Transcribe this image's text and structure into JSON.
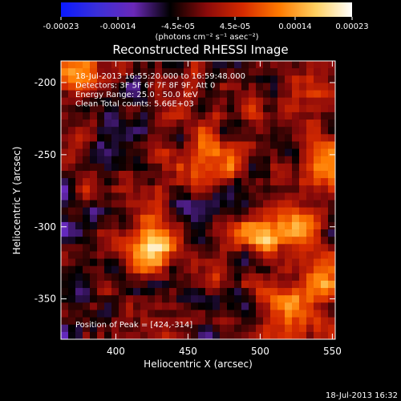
{
  "chart_data": {
    "type": "heatmap",
    "title": "Reconstructed RHESSI Image",
    "xlabel": "Heliocentric X (arcsec)",
    "ylabel": "Heliocentric Y (arcsec)",
    "xlim": [
      362,
      552
    ],
    "ylim": [
      -378,
      -185
    ],
    "x_ticks": [
      "400",
      "450",
      "500",
      "550"
    ],
    "x_tick_values": [
      400,
      450,
      500,
      550
    ],
    "y_ticks": [
      "-200",
      "-250",
      "-300",
      "-350"
    ],
    "y_tick_values": [
      -200,
      -250,
      -300,
      -350
    ],
    "colorbar": {
      "ticks": [
        "-0.00023",
        "-0.00014",
        "-4.5e-05",
        "4.5e-05",
        "0.00014",
        "0.00023"
      ],
      "tick_values": [
        -0.00023,
        -0.00014,
        -4.5e-05,
        4.5e-05,
        0.00014,
        0.00023
      ],
      "range": [
        -0.00023,
        0.00023
      ],
      "unit_label": "(photons cm⁻² s⁻¹ asec⁻²)",
      "colors": [
        "#0a1aff",
        "#3b2fd9",
        "#6a28b8",
        "#000000",
        "#8a0a0a",
        "#d62a00",
        "#ff7a00",
        "#ffd060",
        "#ffffff"
      ]
    },
    "annotations": [
      "18-Jul-2013 16:55:20.000 to 16:59:48.000",
      "Detectors: 3F 5F 6F 7F 8F 9F, Att 0",
      "Energy Range: 25.0 - 50.0 keV",
      "Clean     Total counts: 5.66E+03"
    ],
    "peak_label": "Position of Peak = [424,-314]",
    "peak": [
      424,
      -314
    ],
    "bright_sources": [
      {
        "x": 424,
        "y": -314,
        "value": 0.00023
      },
      {
        "x": 368,
        "y": -195,
        "value": 0.00018
      },
      {
        "x": 545,
        "y": -250,
        "value": 0.00016
      },
      {
        "x": 500,
        "y": -305,
        "value": 0.00014
      },
      {
        "x": 530,
        "y": -300,
        "value": 0.00013
      },
      {
        "x": 465,
        "y": -250,
        "value": 0.00011
      },
      {
        "x": 520,
        "y": -355,
        "value": 0.00012
      },
      {
        "x": 545,
        "y": -340,
        "value": 0.00013
      }
    ],
    "grid": false
  },
  "footer": {
    "timestamp": "18-Jul-2013 16:32"
  }
}
